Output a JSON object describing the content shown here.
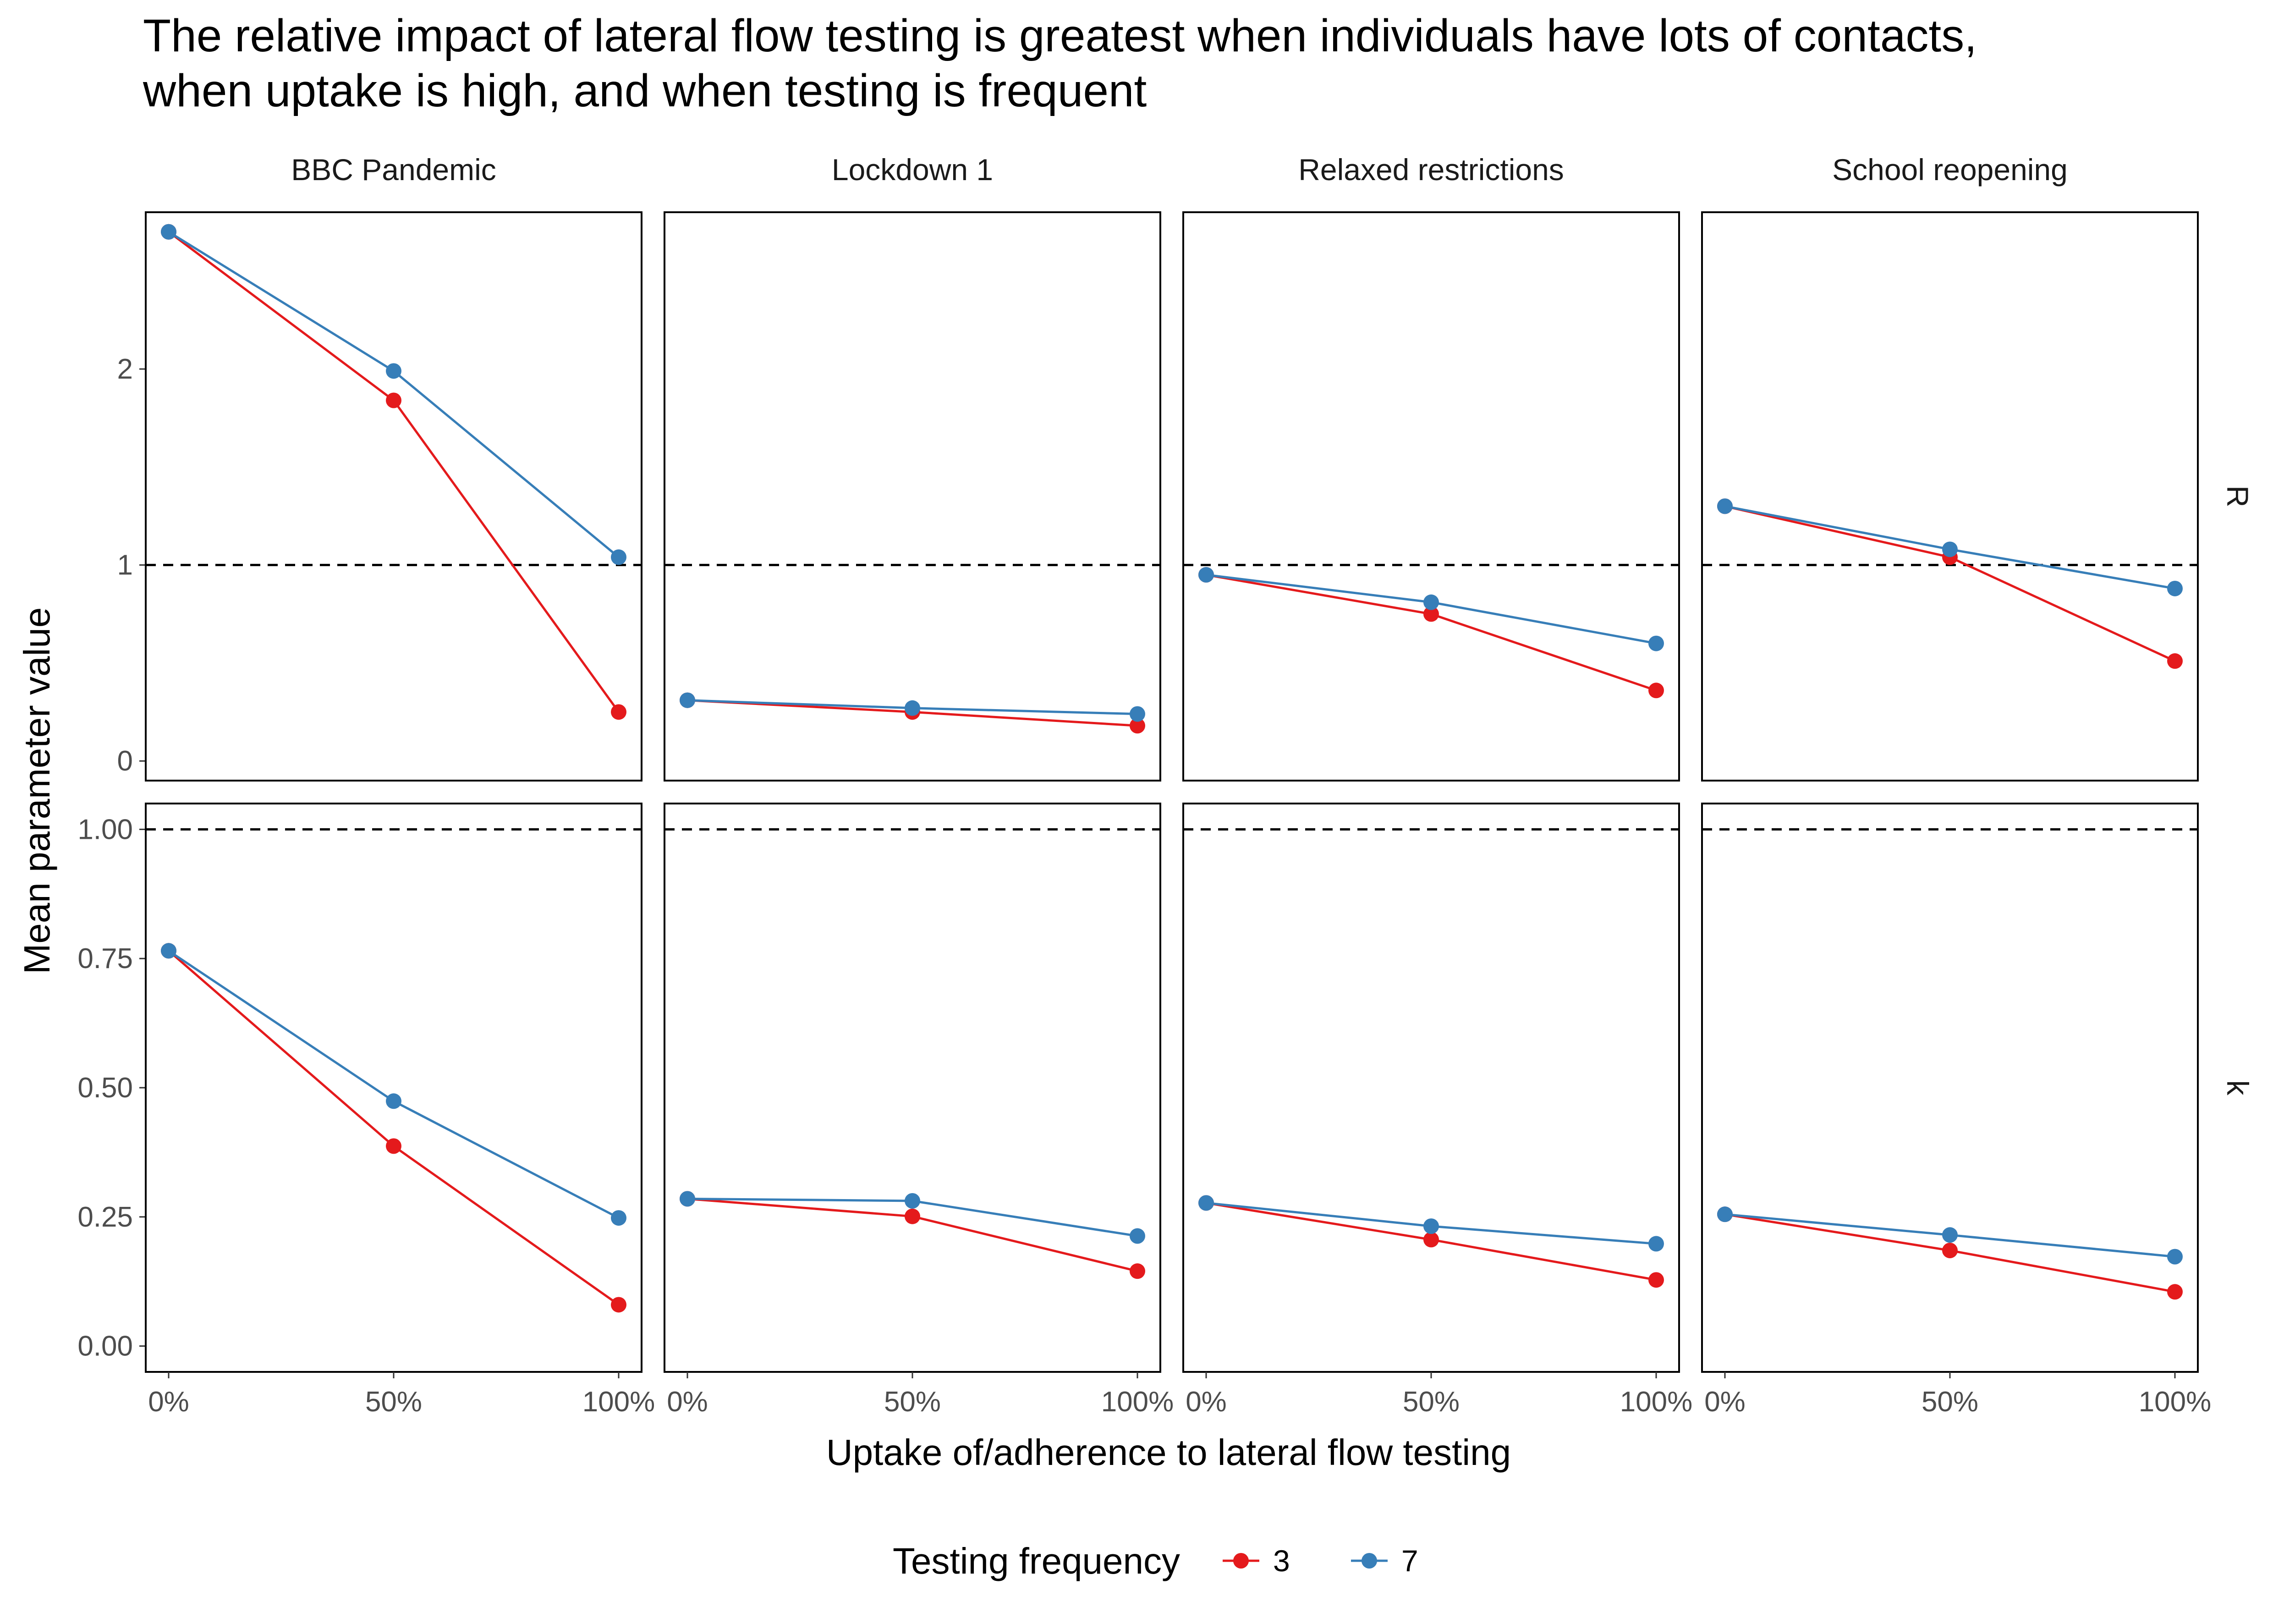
{
  "title_lines": [
    "The relative impact of lateral flow testing is greatest when individuals have lots of contacts,",
    "when uptake is high, and when testing is frequent"
  ],
  "chart_data": {
    "type": "line",
    "facet_columns": [
      "BBC Pandemic",
      "Lockdown 1",
      "Relaxed restrictions",
      "School reopening"
    ],
    "facet_rows": [
      "R",
      "k"
    ],
    "x": [
      "0%",
      "50%",
      "100%"
    ],
    "xlabel": "Uptake of/adherence to lateral flow testing",
    "ylabel": "Mean parameter value",
    "reference_line": 1,
    "grid": false,
    "legend": {
      "title": "Testing frequency",
      "position": "bottom",
      "entries": [
        {
          "name": "3",
          "color": "#e41a1c"
        },
        {
          "name": "7",
          "color": "#377eb8"
        }
      ]
    },
    "rows": [
      {
        "name": "R",
        "ylim": [
          -0.1,
          2.8
        ],
        "yticks": [
          0,
          1,
          2
        ],
        "ytick_labels": [
          "0",
          "1",
          "2"
        ],
        "panels": [
          {
            "facet": "BBC Pandemic",
            "series": [
              {
                "name": "3",
                "values": [
                  2.7,
                  1.84,
                  0.25
                ]
              },
              {
                "name": "7",
                "values": [
                  2.7,
                  1.99,
                  1.04
                ]
              }
            ]
          },
          {
            "facet": "Lockdown 1",
            "series": [
              {
                "name": "3",
                "values": [
                  0.31,
                  0.25,
                  0.18
                ]
              },
              {
                "name": "7",
                "values": [
                  0.31,
                  0.27,
                  0.24
                ]
              }
            ]
          },
          {
            "facet": "Relaxed restrictions",
            "series": [
              {
                "name": "3",
                "values": [
                  0.95,
                  0.75,
                  0.36
                ]
              },
              {
                "name": "7",
                "values": [
                  0.95,
                  0.81,
                  0.6
                ]
              }
            ]
          },
          {
            "facet": "School reopening",
            "series": [
              {
                "name": "3",
                "values": [
                  1.3,
                  1.04,
                  0.51
                ]
              },
              {
                "name": "7",
                "values": [
                  1.3,
                  1.08,
                  0.88
                ]
              }
            ]
          }
        ]
      },
      {
        "name": "k",
        "ylim": [
          -0.05,
          1.05
        ],
        "yticks": [
          0,
          0.25,
          0.5,
          0.75,
          1
        ],
        "ytick_labels": [
          "0.00",
          "0.25",
          "0.50",
          "0.75",
          "1.00"
        ],
        "panels": [
          {
            "facet": "BBC Pandemic",
            "series": [
              {
                "name": "3",
                "values": [
                  0.765,
                  0.387,
                  0.08
                ]
              },
              {
                "name": "7",
                "values": [
                  0.765,
                  0.474,
                  0.248
                ]
              }
            ]
          },
          {
            "facet": "Lockdown 1",
            "series": [
              {
                "name": "3",
                "values": [
                  0.285,
                  0.251,
                  0.145
                ]
              },
              {
                "name": "7",
                "values": [
                  0.285,
                  0.281,
                  0.213
                ]
              }
            ]
          },
          {
            "facet": "Relaxed restrictions",
            "series": [
              {
                "name": "3",
                "values": [
                  0.277,
                  0.206,
                  0.128
                ]
              },
              {
                "name": "7",
                "values": [
                  0.277,
                  0.232,
                  0.198
                ]
              }
            ]
          },
          {
            "facet": "School reopening",
            "series": [
              {
                "name": "3",
                "values": [
                  0.255,
                  0.185,
                  0.105
                ]
              },
              {
                "name": "7",
                "values": [
                  0.255,
                  0.215,
                  0.173
                ]
              }
            ]
          }
        ]
      }
    ]
  }
}
